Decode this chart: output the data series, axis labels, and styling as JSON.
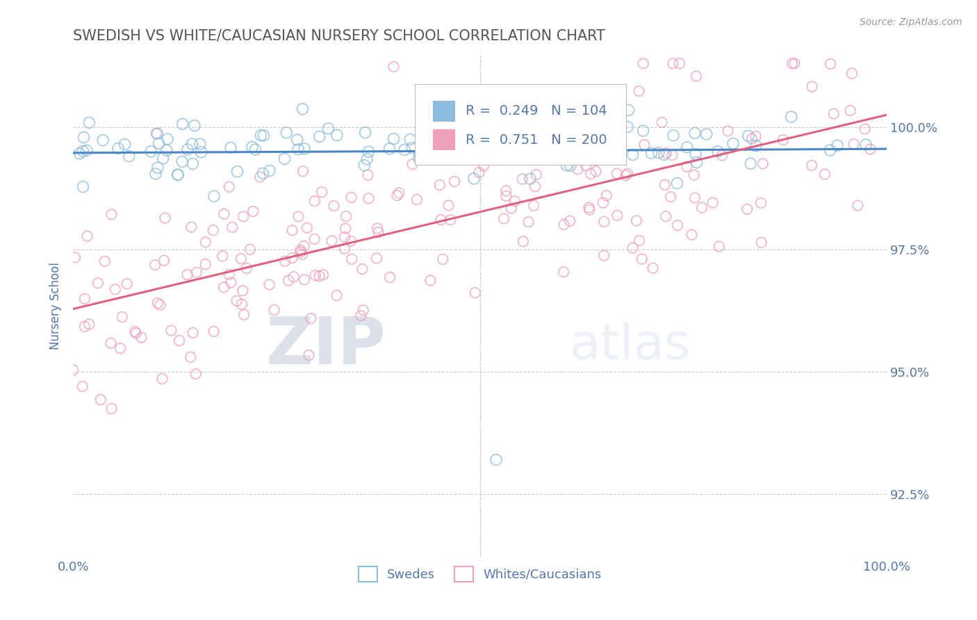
{
  "title": "SWEDISH VS WHITE/CAUCASIAN NURSERY SCHOOL CORRELATION CHART",
  "source": "Source: ZipAtlas.com",
  "ylabel": "Nursery School",
  "xlim": [
    0.0,
    100.0
  ],
  "ylim": [
    91.2,
    101.5
  ],
  "yticks": [
    92.5,
    95.0,
    97.5,
    100.0
  ],
  "xticks": [
    0.0,
    100.0
  ],
  "xticklabels": [
    "0.0%",
    "100.0%"
  ],
  "yticklabels": [
    "92.5%",
    "95.0%",
    "97.5%",
    "100.0%"
  ],
  "blue_R": 0.249,
  "blue_N": 104,
  "pink_R": 0.751,
  "pink_N": 200,
  "blue_color": "#8bbcde",
  "pink_color": "#f0a0b8",
  "blue_line_color": "#4a86c8",
  "pink_line_color": "#e06080",
  "legend_label_blue": "Swedes",
  "legend_label_pink": "Whites/Caucasians",
  "watermark_zip": "ZIP",
  "watermark_atlas": "atlas",
  "background_color": "#ffffff",
  "grid_color": "#cccccc",
  "title_color": "#555555",
  "axis_label_color": "#5577aa",
  "tick_color": "#5577aa",
  "legend_R_N_color": "#5577aa",
  "legend_text_color": "#222222"
}
